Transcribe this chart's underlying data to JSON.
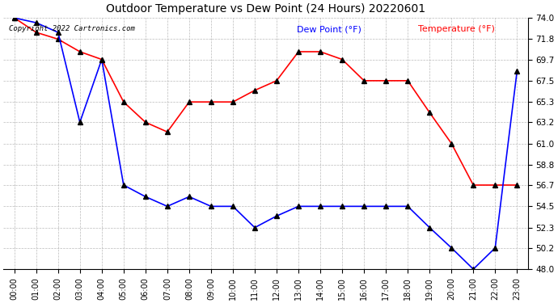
{
  "title": "Outdoor Temperature vs Dew Point (24 Hours) 20220601",
  "copyright_text": "Copyright 2022 Cartronics.com",
  "legend_dew": "Dew Point (°F)",
  "legend_temp": "Temperature (°F)",
  "hours": [
    0,
    1,
    2,
    3,
    4,
    5,
    6,
    7,
    8,
    9,
    10,
    11,
    12,
    13,
    14,
    15,
    16,
    17,
    18,
    19,
    20,
    21,
    22,
    23
  ],
  "temperature": [
    74.0,
    72.5,
    71.8,
    70.5,
    69.7,
    65.3,
    63.2,
    62.2,
    65.3,
    65.3,
    65.3,
    66.5,
    67.5,
    70.5,
    70.5,
    69.7,
    67.5,
    67.5,
    67.5,
    64.2,
    61.0,
    56.7,
    56.7,
    56.7
  ],
  "dew_point": [
    74.0,
    73.5,
    72.5,
    63.2,
    69.7,
    56.7,
    55.5,
    54.5,
    55.5,
    54.5,
    54.5,
    52.3,
    53.5,
    54.5,
    54.5,
    54.5,
    54.5,
    54.5,
    54.5,
    52.3,
    50.2,
    48.0,
    50.2,
    68.5
  ],
  "temp_color": "red",
  "dew_color": "blue",
  "marker": "^",
  "marker_color": "black",
  "bg_color": "white",
  "grid_color": "#aaaaaa",
  "ylim_min": 48.0,
  "ylim_max": 74.0,
  "yticks": [
    48.0,
    50.2,
    52.3,
    54.5,
    56.7,
    58.8,
    61.0,
    63.2,
    65.3,
    67.5,
    69.7,
    71.8,
    74.0
  ]
}
